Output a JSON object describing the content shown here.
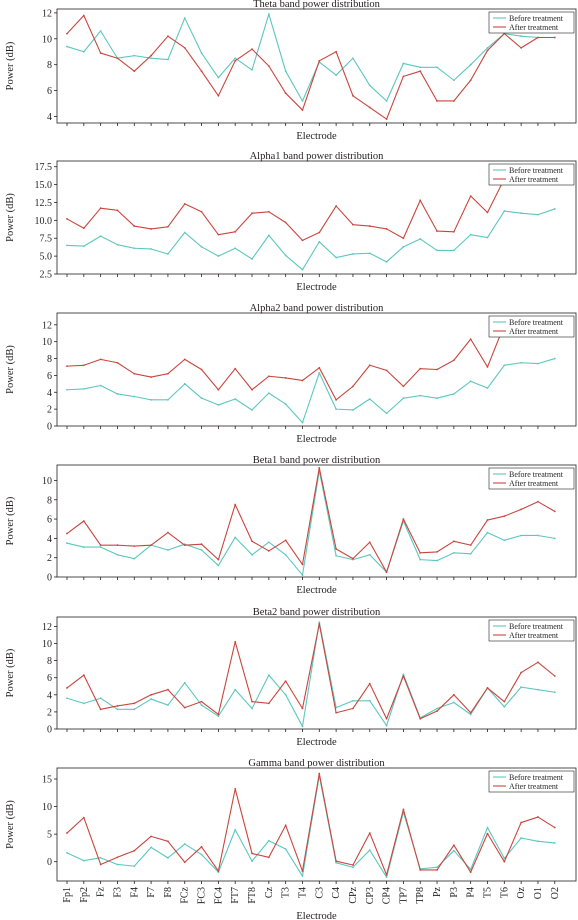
{
  "figure": {
    "colors": {
      "before": "#5cc7bf",
      "after": "#c8463d",
      "axis": "#231f20"
    }
  },
  "chart_data": [
    {
      "type": "line",
      "title": "Theta band power distribution",
      "xlabel": "Electrode",
      "ylabel": "Power (dB)",
      "ylim": [
        3.5,
        12.3
      ],
      "yticks": [
        4,
        6,
        8,
        10,
        12
      ],
      "show_xtick_labels": false,
      "legend": "top-right",
      "grid": false,
      "categories": [
        "Fp1",
        "Fp2",
        "Fz",
        "F3",
        "F4",
        "F7",
        "F8",
        "FCz",
        "FC3",
        "FC4",
        "FT7",
        "FT8",
        "Cz",
        "T3",
        "T4",
        "C3",
        "C4",
        "CPz",
        "CP3",
        "CP4",
        "TP7",
        "TP8",
        "Pz",
        "P3",
        "P4",
        "T5",
        "T6",
        "Oz",
        "O1",
        "O2"
      ],
      "series": [
        {
          "name": "Before treatment",
          "values": [
            9.4,
            9.0,
            10.6,
            8.5,
            8.7,
            8.5,
            8.4,
            11.6,
            8.9,
            7.0,
            8.5,
            7.6,
            11.9,
            7.5,
            5.2,
            8.2,
            7.2,
            8.5,
            6.4,
            5.2,
            8.1,
            7.8,
            7.8,
            6.8,
            8.0,
            9.3,
            10.4,
            10.2,
            10.1,
            10.1
          ]
        },
        {
          "name": "After treatment",
          "values": [
            10.4,
            11.8,
            8.9,
            8.5,
            7.5,
            8.7,
            10.2,
            9.3,
            7.5,
            5.6,
            8.3,
            9.2,
            7.9,
            5.8,
            4.5,
            8.3,
            9.0,
            5.6,
            4.7,
            3.8,
            7.1,
            7.5,
            5.2,
            5.2,
            6.8,
            9.1,
            10.4,
            9.3,
            10.1,
            10.1
          ]
        }
      ]
    },
    {
      "type": "line",
      "title": "Alpha1 band power distribution",
      "xlabel": "Electrode",
      "ylabel": "Power (dB)",
      "ylim": [
        2.5,
        18.3
      ],
      "yticks": [
        2.5,
        5.0,
        7.5,
        10.0,
        12.5,
        15.0,
        17.5
      ],
      "show_xtick_labels": false,
      "legend": "top-right",
      "grid": false,
      "categories": [
        "Fp1",
        "Fp2",
        "Fz",
        "F3",
        "F4",
        "F7",
        "F8",
        "FCz",
        "FC3",
        "FC4",
        "FT7",
        "FT8",
        "Cz",
        "T3",
        "T4",
        "C3",
        "C4",
        "CPz",
        "CP3",
        "CP4",
        "TP7",
        "TP8",
        "Pz",
        "P3",
        "P4",
        "T5",
        "T6",
        "Oz",
        "O1",
        "O2"
      ],
      "series": [
        {
          "name": "Before treatment",
          "values": [
            6.5,
            6.4,
            7.8,
            6.6,
            6.1,
            6.0,
            5.3,
            8.3,
            6.3,
            5.0,
            6.1,
            4.6,
            7.9,
            5.1,
            3.1,
            7.0,
            4.8,
            5.3,
            5.4,
            4.2,
            6.3,
            7.4,
            5.8,
            5.8,
            8.0,
            7.6,
            11.3,
            11.0,
            10.8,
            11.6
          ]
        },
        {
          "name": "After treatment",
          "values": [
            10.2,
            8.9,
            11.7,
            11.4,
            9.2,
            8.8,
            9.1,
            12.3,
            11.2,
            8.0,
            8.4,
            11.0,
            11.2,
            9.7,
            7.2,
            8.3,
            12.0,
            9.4,
            9.2,
            8.8,
            7.5,
            12.8,
            8.5,
            8.4,
            13.4,
            11.1,
            15.8,
            null,
            null,
            null
          ]
        }
      ]
    },
    {
      "type": "line",
      "title": "Alpha2 band power distribution",
      "xlabel": "Electrode",
      "ylabel": "Power (dB)",
      "ylim": [
        0,
        13.4
      ],
      "yticks": [
        0,
        2,
        4,
        6,
        8,
        10,
        12
      ],
      "show_xtick_labels": false,
      "legend": "top-right",
      "grid": false,
      "categories": [
        "Fp1",
        "Fp2",
        "Fz",
        "F3",
        "F4",
        "F7",
        "F8",
        "FCz",
        "FC3",
        "FC4",
        "FT7",
        "FT8",
        "Cz",
        "T3",
        "T4",
        "C3",
        "C4",
        "CPz",
        "CP3",
        "CP4",
        "TP7",
        "TP8",
        "Pz",
        "P3",
        "P4",
        "T5",
        "T6",
        "Oz",
        "O1",
        "O2"
      ],
      "series": [
        {
          "name": "Before treatment",
          "values": [
            4.3,
            4.4,
            4.8,
            3.8,
            3.5,
            3.1,
            3.1,
            5.0,
            3.3,
            2.5,
            3.2,
            1.9,
            3.9,
            2.6,
            0.4,
            6.3,
            2.0,
            1.9,
            3.2,
            1.5,
            3.3,
            3.6,
            3.3,
            3.8,
            5.3,
            4.5,
            7.2,
            7.5,
            7.4,
            8.0
          ]
        },
        {
          "name": "After treatment",
          "values": [
            7.1,
            7.2,
            7.9,
            7.5,
            6.2,
            5.8,
            6.2,
            7.9,
            6.7,
            4.3,
            6.8,
            4.3,
            5.9,
            5.7,
            5.4,
            6.9,
            3.1,
            4.7,
            7.2,
            6.6,
            4.7,
            6.8,
            6.7,
            7.8,
            10.3,
            7.0,
            12.0,
            null,
            null,
            null
          ]
        }
      ]
    },
    {
      "type": "line",
      "title": "Beta1 band power distribution",
      "xlabel": "Electrode",
      "ylabel": "Power (dB)",
      "ylim": [
        0,
        11.6
      ],
      "yticks": [
        0,
        2,
        4,
        6,
        8,
        10
      ],
      "show_xtick_labels": false,
      "legend": "top-right",
      "grid": false,
      "categories": [
        "Fp1",
        "Fp2",
        "Fz",
        "F3",
        "F4",
        "F7",
        "F8",
        "FCz",
        "FC3",
        "FC4",
        "FT7",
        "FT8",
        "Cz",
        "T3",
        "T4",
        "C3",
        "C4",
        "CPz",
        "CP3",
        "CP4",
        "TP7",
        "TP8",
        "Pz",
        "P3",
        "P4",
        "T5",
        "T6",
        "Oz",
        "O1",
        "O2"
      ],
      "series": [
        {
          "name": "Before treatment",
          "values": [
            3.5,
            3.1,
            3.1,
            2.3,
            1.9,
            3.3,
            2.8,
            3.4,
            2.8,
            1.2,
            4.1,
            2.3,
            3.6,
            2.3,
            0.2,
            11.0,
            2.2,
            1.8,
            2.3,
            0.5,
            5.8,
            1.8,
            1.7,
            2.5,
            2.4,
            4.6,
            3.8,
            4.3,
            4.3,
            4.0
          ]
        },
        {
          "name": "After treatment",
          "values": [
            4.5,
            5.8,
            3.3,
            3.3,
            3.2,
            3.3,
            4.6,
            3.3,
            3.4,
            1.8,
            7.5,
            3.7,
            2.7,
            3.8,
            1.3,
            11.3,
            2.9,
            1.9,
            3.6,
            0.5,
            6.0,
            2.5,
            2.6,
            3.7,
            3.3,
            5.9,
            6.3,
            7.0,
            7.8,
            6.8
          ]
        }
      ]
    },
    {
      "type": "line",
      "title": "Beta2 band power distribution",
      "xlabel": "Electrode",
      "ylabel": "Power (dB)",
      "ylim": [
        0,
        13.1
      ],
      "yticks": [
        0,
        2,
        4,
        6,
        8,
        10,
        12
      ],
      "show_xtick_labels": false,
      "legend": "top-right",
      "grid": false,
      "categories": [
        "Fp1",
        "Fp2",
        "Fz",
        "F3",
        "F4",
        "F7",
        "F8",
        "FCz",
        "FC3",
        "FC4",
        "FT7",
        "FT8",
        "Cz",
        "T3",
        "T4",
        "C3",
        "C4",
        "CPz",
        "CP3",
        "CP4",
        "TP7",
        "TP8",
        "Pz",
        "P3",
        "P4",
        "T5",
        "T6",
        "Oz",
        "O1",
        "O2"
      ],
      "series": [
        {
          "name": "Before treatment",
          "values": [
            3.6,
            3.0,
            3.6,
            2.3,
            2.3,
            3.5,
            2.8,
            5.4,
            2.8,
            1.5,
            4.6,
            2.4,
            6.3,
            4.0,
            0.3,
            12.5,
            2.5,
            3.3,
            3.3,
            0.4,
            6.4,
            1.3,
            2.4,
            3.1,
            1.7,
            4.8,
            2.6,
            4.9,
            4.6,
            4.3
          ]
        },
        {
          "name": "After treatment",
          "values": [
            4.8,
            6.3,
            2.3,
            2.7,
            3.0,
            4.0,
            4.6,
            2.5,
            3.2,
            1.7,
            10.2,
            3.2,
            3.0,
            5.6,
            2.4,
            12.3,
            1.9,
            2.4,
            5.3,
            1.2,
            6.2,
            1.2,
            2.1,
            4.0,
            1.9,
            4.8,
            3.2,
            6.6,
            7.8,
            6.2
          ]
        }
      ]
    },
    {
      "type": "line",
      "title": "Gamma band power distribution",
      "xlabel": "Electrode",
      "ylabel": "Power (dB)",
      "ylim": [
        -3.5,
        17.0
      ],
      "yticks": [
        0,
        5,
        10,
        15
      ],
      "show_xtick_labels": true,
      "legend": "top-right",
      "grid": false,
      "categories": [
        "Fp1",
        "Fp2",
        "Fz",
        "F3",
        "F4",
        "F7",
        "F8",
        "FCz",
        "FC3",
        "FC4",
        "FT7",
        "FT8",
        "Cz",
        "T3",
        "T4",
        "C3",
        "C4",
        "CPz",
        "CP3",
        "CP4",
        "TP7",
        "TP8",
        "Pz",
        "P3",
        "P4",
        "T5",
        "T6",
        "Oz",
        "O1",
        "O2"
      ],
      "series": [
        {
          "name": "Before treatment",
          "values": [
            1.6,
            0.2,
            0.7,
            -0.5,
            -0.8,
            2.6,
            0.7,
            3.2,
            1.3,
            -1.9,
            5.8,
            0.1,
            3.8,
            2.3,
            -2.6,
            15.6,
            -0.2,
            -1.0,
            2.1,
            -2.8,
            9.0,
            -1.3,
            -1.0,
            2.0,
            -1.4,
            6.2,
            0.6,
            4.3,
            3.7,
            3.4
          ]
        },
        {
          "name": "After treatment",
          "values": [
            5.2,
            8.0,
            -0.5,
            0.8,
            2.0,
            4.6,
            3.7,
            -0.1,
            2.7,
            -1.7,
            13.2,
            1.5,
            0.8,
            6.6,
            -1.7,
            16.0,
            0.1,
            -0.6,
            5.2,
            -2.4,
            9.5,
            -1.5,
            -1.5,
            3.0,
            -1.9,
            5.1,
            0.0,
            7.1,
            8.1,
            6.2
          ]
        }
      ]
    }
  ]
}
